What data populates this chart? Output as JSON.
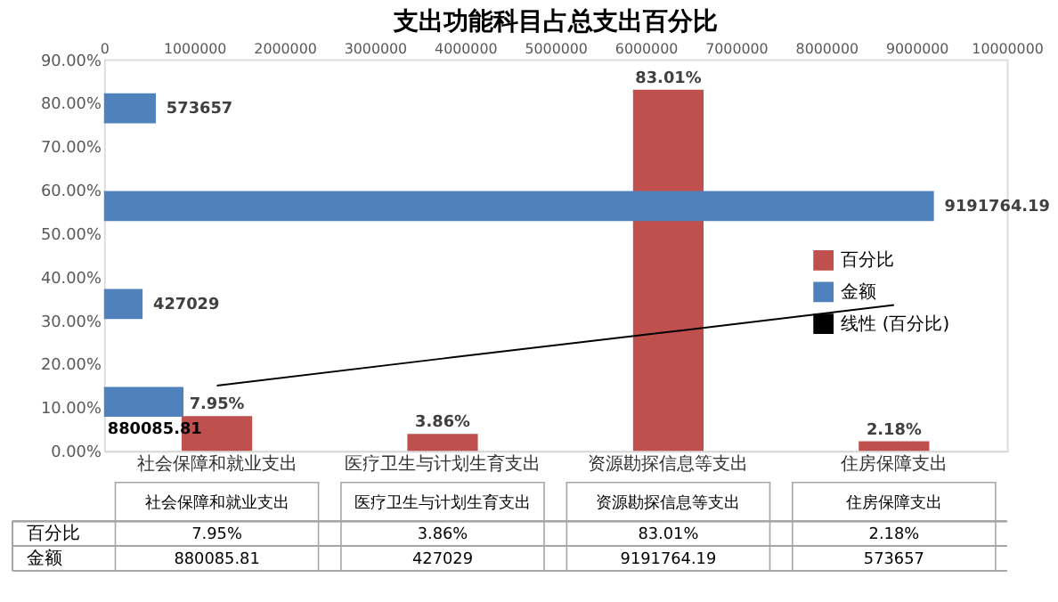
{
  "chart_data": [
    {
      "type": "bar",
      "title": "支出功能科目占总支出百分比",
      "categories": [
        "社会保障和就业支出",
        "医疗卫生与计划生育支出",
        "资源勘探信息等支出",
        "住房保障支出"
      ],
      "series": [
        {
          "name": "百分比",
          "color": "#c0504d",
          "values": [
            7.95,
            3.86,
            83.01,
            2.18
          ],
          "value_labels": [
            "7.95%",
            "3.86%",
            "83.01%",
            "2.18%"
          ]
        },
        {
          "name": "线性 (百分比)",
          "type": "line",
          "color": "#000000",
          "values": [
            15.0,
            21.2,
            27.3,
            33.5
          ]
        }
      ],
      "ylim": [
        0,
        90
      ],
      "yticks": [
        {
          "value": 0,
          "label": "0.00%"
        },
        {
          "value": 10,
          "label": "10.00%"
        },
        {
          "value": 20,
          "label": "20.00%"
        },
        {
          "value": 30,
          "label": "30.00%"
        },
        {
          "value": 40,
          "label": "40.00%"
        },
        {
          "value": 50,
          "label": "50.00%"
        },
        {
          "value": 60,
          "label": "60.00%"
        },
        {
          "value": 70,
          "label": "70.00%"
        },
        {
          "value": 80,
          "label": "80.00%"
        },
        {
          "value": 90,
          "label": "90.00%"
        }
      ],
      "legend": "right"
    },
    {
      "type": "bar",
      "orientation": "horizontal",
      "categories": [
        null,
        null,
        null,
        null
      ],
      "series": [
        {
          "name": "金额",
          "color": "#4f81bd",
          "axis": "x2",
          "values": [
            573657,
            9191764.19,
            427029,
            880085.81
          ],
          "value_labels": [
            "573657",
            "9191764.19",
            "427029",
            "880085.81"
          ]
        }
      ],
      "x2lim": [
        0,
        10000000
      ],
      "x2ticks": [
        0,
        1000000,
        2000000,
        3000000,
        4000000,
        5000000,
        6000000,
        7000000,
        8000000,
        9000000,
        10000000
      ]
    }
  ]
}
